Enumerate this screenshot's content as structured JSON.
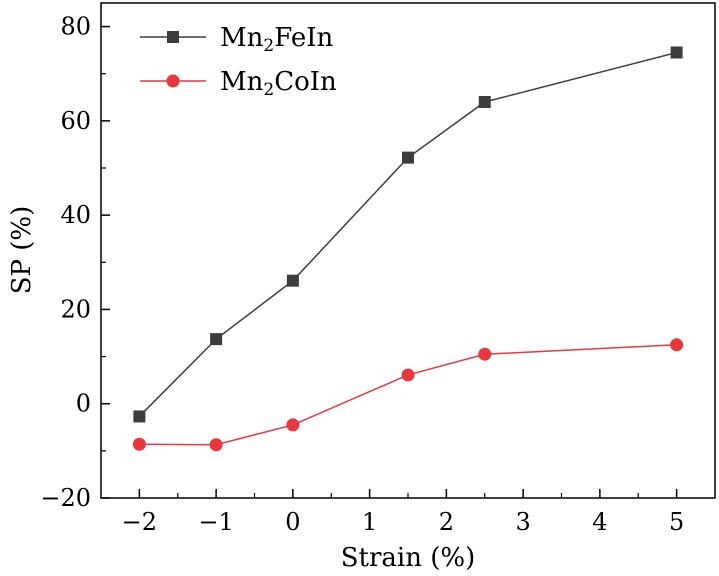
{
  "chart_data": {
    "type": "line",
    "xlabel": "Strain (%)",
    "ylabel": "SP (%)",
    "x": [
      -2,
      -1,
      0,
      1.5,
      2.5,
      5
    ],
    "xlim": [
      -2.5,
      5.5
    ],
    "ylim": [
      -20,
      85
    ],
    "xticks": [
      -2,
      -1,
      0,
      1,
      2,
      3,
      4,
      5
    ],
    "xtick_labels": [
      "−2",
      "−1",
      "0",
      "1",
      "2",
      "3",
      "4",
      "5"
    ],
    "yticks": [
      -20,
      0,
      20,
      40,
      60,
      80
    ],
    "ytick_labels": [
      "−20",
      "0",
      "20",
      "40",
      "60",
      "80"
    ],
    "grid": false,
    "legend_position": "top-left",
    "series": [
      {
        "name_base": "Mn",
        "name_sub": "2",
        "name_rest": "FeIn",
        "marker": "square",
        "color": "#3d3d3d",
        "values": [
          -2.7,
          13.7,
          26.1,
          52.2,
          64.0,
          74.5
        ]
      },
      {
        "name_base": "Mn",
        "name_sub": "2",
        "name_rest": "CoIn",
        "marker": "circle",
        "color": "#e8383d",
        "values": [
          -8.6,
          -8.7,
          -4.5,
          6.1,
          10.5,
          12.5
        ]
      }
    ]
  }
}
